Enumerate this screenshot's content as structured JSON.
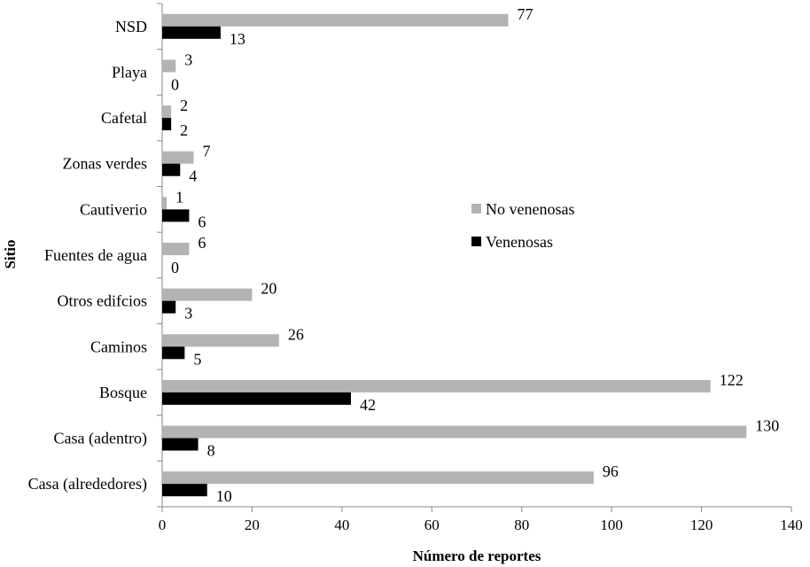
{
  "chart_data": {
    "type": "bar",
    "orientation": "horizontal",
    "categories": [
      "Casa (alrededores)",
      "Casa (adentro)",
      "Bosque",
      "Caminos",
      "Otros edifcios",
      "Fuentes de agua",
      "Cautiverio",
      "Zonas verdes",
      "Cafetal",
      "Playa",
      "NSD"
    ],
    "series": [
      {
        "name": "No venenosas",
        "color": "#b3b3b3",
        "values": [
          96,
          130,
          122,
          26,
          20,
          6,
          1,
          7,
          2,
          3,
          77
        ]
      },
      {
        "name": "Venenosas",
        "color": "#000000",
        "values": [
          10,
          8,
          42,
          5,
          3,
          0,
          6,
          4,
          2,
          0,
          13
        ]
      }
    ],
    "xlabel": "Número de reportes",
    "ylabel": "Sitio",
    "xlim": [
      0,
      140
    ],
    "xticks": [
      "0",
      "20",
      "40",
      "60",
      "80",
      "100",
      "120",
      "140"
    ],
    "grid": false,
    "legend_position": "right"
  }
}
